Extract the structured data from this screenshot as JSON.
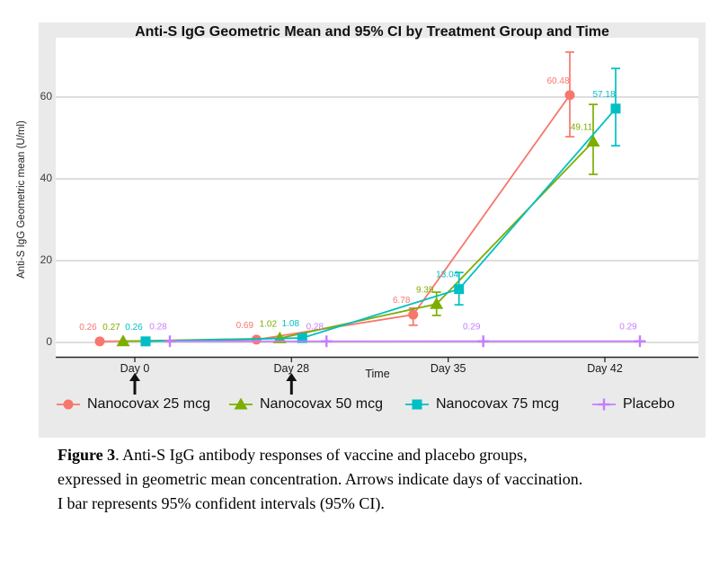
{
  "figure": {
    "title": "Anti-S IgG Geometric Mean and 95% CI by Treatment Group and Time"
  },
  "chart_data": {
    "type": "line",
    "title": "Anti-S IgG Geometric Mean and 95% CI by Treatment Group and Time",
    "xlabel": "Time",
    "ylabel": "Anti-S IgG Geometric mean (U/ml)",
    "categories": [
      "Day 0",
      "Day 28",
      "Day 35",
      "Day 42"
    ],
    "x_days": [
      0,
      28,
      35,
      42
    ],
    "yticks": [
      0,
      20,
      40,
      60
    ],
    "ylim": [
      0,
      74
    ],
    "grid": true,
    "legend_position": "bottom",
    "error_bars": "95% CI",
    "vaccination_arrows": [
      "Day 0",
      "Day 28"
    ],
    "series": [
      {
        "name": "Nanocovax 25 mcg",
        "color": "#F8766D",
        "marker": "circle",
        "values": [
          0.26,
          0.69,
          6.78,
          60.48
        ],
        "labels": [
          "0.26",
          "0.69",
          "6.78",
          "60.48"
        ],
        "ci_low": [
          null,
          null,
          4.2,
          50.3
        ],
        "ci_high": [
          null,
          null,
          8.4,
          71.0
        ]
      },
      {
        "name": "Nanocovax 50 mcg",
        "color": "#7CAE00",
        "marker": "triangle",
        "values": [
          0.27,
          1.02,
          9.39,
          49.11
        ],
        "labels": [
          "0.27",
          "1.02",
          "9.39",
          "49.11"
        ],
        "ci_low": [
          null,
          null,
          6.6,
          41.1
        ],
        "ci_high": [
          null,
          null,
          12.3,
          58.2
        ]
      },
      {
        "name": "Nanocovax 75 mcg",
        "color": "#00BFC4",
        "marker": "square",
        "values": [
          0.26,
          1.08,
          13.04,
          57.18
        ],
        "labels": [
          "0.26",
          "1.08",
          "13.04",
          "57.18"
        ],
        "ci_low": [
          null,
          null,
          9.2,
          48.1
        ],
        "ci_high": [
          null,
          null,
          17.1,
          67.0
        ]
      },
      {
        "name": "Placebo",
        "color": "#C77CFF",
        "marker": "plus",
        "values": [
          0.28,
          0.28,
          0.29,
          0.29
        ],
        "labels": [
          "0.28",
          "0.28",
          "0.29",
          "0.29"
        ],
        "ci_low": [
          null,
          null,
          null,
          null
        ],
        "ci_high": [
          null,
          null,
          null,
          null
        ]
      }
    ]
  },
  "caption": {
    "label": "Figure 3",
    "line1": ". Anti-S IgG antibody responses of vaccine and placebo groups,",
    "line2": "expressed in geometric mean concentration. Arrows indicate days of vaccination.",
    "line3": "I bar represents 95% confident intervals (95% CI)."
  }
}
